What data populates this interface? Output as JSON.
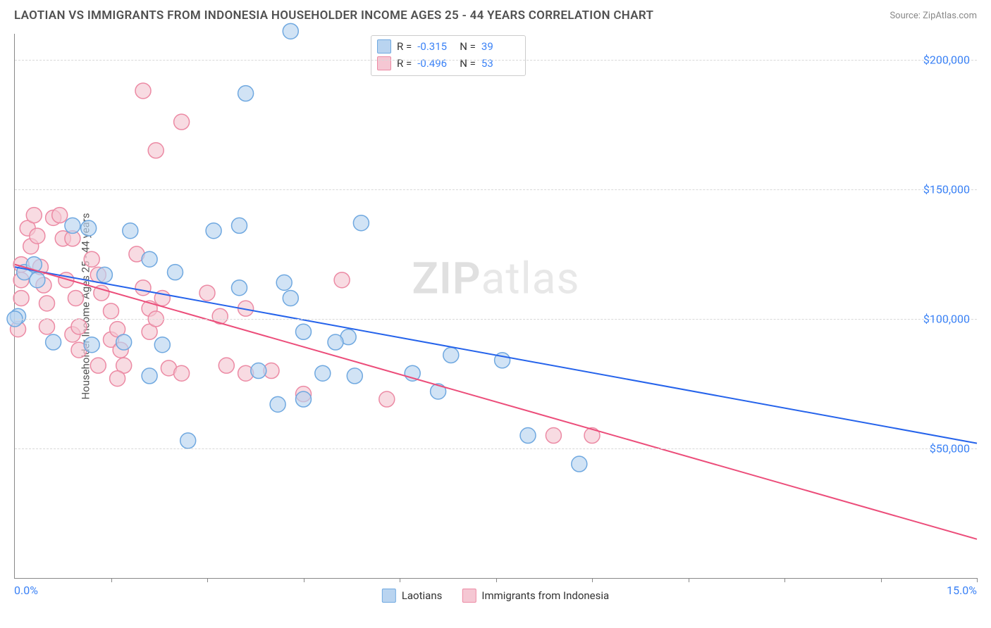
{
  "title": "LAOTIAN VS IMMIGRANTS FROM INDONESIA HOUSEHOLDER INCOME AGES 25 - 44 YEARS CORRELATION CHART",
  "source_label": "Source:",
  "source_name": "ZipAtlas.com",
  "watermark_a": "ZIP",
  "watermark_b": "atlas",
  "chart": {
    "type": "scatter",
    "ylabel": "Householder Income Ages 25 - 44 years",
    "xmin": 0,
    "xmax": 15,
    "ymin": 0,
    "ymax": 210000,
    "xmin_label": "0.0%",
    "xmax_label": "15.0%",
    "y_ticks": [
      50000,
      100000,
      150000,
      200000
    ],
    "y_tick_labels": [
      "$50,000",
      "$100,000",
      "$150,000",
      "$200,000"
    ],
    "x_ticks": [
      1.5,
      3.0,
      4.5,
      6.0,
      7.5,
      9.0,
      10.5,
      12.0,
      13.5,
      15.0
    ],
    "grid_color": "#d8d8d8",
    "background": "#ffffff",
    "series": [
      {
        "name": "Laotians",
        "color_fill": "#b9d4f0",
        "color_stroke": "#6fa8e0",
        "r_value": "-0.315",
        "n_value": "39",
        "trend": {
          "x1": 0,
          "y1": 120000,
          "x2": 15,
          "y2": 52000,
          "color": "#2563eb",
          "width": 2
        },
        "points": [
          [
            0.05,
            101000
          ],
          [
            0.15,
            118000
          ],
          [
            0.3,
            121000
          ],
          [
            0.35,
            115000
          ],
          [
            0.9,
            136000
          ],
          [
            1.15,
            135000
          ],
          [
            1.8,
            134000
          ],
          [
            1.4,
            117000
          ],
          [
            2.1,
            123000
          ],
          [
            2.5,
            118000
          ],
          [
            0.6,
            91000
          ],
          [
            1.2,
            90000
          ],
          [
            1.7,
            91000
          ],
          [
            2.3,
            90000
          ],
          [
            2.1,
            78000
          ],
          [
            4.3,
            211000
          ],
          [
            3.6,
            187000
          ],
          [
            3.1,
            134000
          ],
          [
            3.5,
            136000
          ],
          [
            5.4,
            137000
          ],
          [
            3.5,
            112000
          ],
          [
            4.2,
            114000
          ],
          [
            4.3,
            108000
          ],
          [
            4.5,
            95000
          ],
          [
            5.2,
            93000
          ],
          [
            5.0,
            91000
          ],
          [
            3.8,
            80000
          ],
          [
            4.8,
            79000
          ],
          [
            5.3,
            78000
          ],
          [
            4.1,
            67000
          ],
          [
            4.5,
            69000
          ],
          [
            2.7,
            53000
          ],
          [
            6.2,
            79000
          ],
          [
            6.8,
            86000
          ],
          [
            6.6,
            72000
          ],
          [
            7.6,
            84000
          ],
          [
            8.8,
            44000
          ],
          [
            8.0,
            55000
          ],
          [
            0.0,
            100000
          ]
        ]
      },
      {
        "name": "Immigrants from Indonesia",
        "color_fill": "#f5c7d3",
        "color_stroke": "#ec8aa4",
        "r_value": "-0.496",
        "n_value": "53",
        "trend": {
          "x1": 0,
          "y1": 121000,
          "x2": 15,
          "y2": 15000,
          "color": "#ec4d7a",
          "width": 2
        },
        "points": [
          [
            0.1,
            121000
          ],
          [
            0.1,
            115000
          ],
          [
            0.1,
            108000
          ],
          [
            0.05,
            96000
          ],
          [
            0.2,
            135000
          ],
          [
            0.25,
            128000
          ],
          [
            0.3,
            140000
          ],
          [
            0.35,
            132000
          ],
          [
            0.4,
            120000
          ],
          [
            0.45,
            113000
          ],
          [
            0.5,
            106000
          ],
          [
            0.5,
            97000
          ],
          [
            0.6,
            139000
          ],
          [
            0.7,
            140000
          ],
          [
            0.75,
            131000
          ],
          [
            0.8,
            115000
          ],
          [
            0.9,
            131000
          ],
          [
            0.95,
            108000
          ],
          [
            0.9,
            94000
          ],
          [
            1.0,
            97000
          ],
          [
            1.0,
            88000
          ],
          [
            1.2,
            123000
          ],
          [
            1.3,
            117000
          ],
          [
            1.35,
            110000
          ],
          [
            1.5,
            103000
          ],
          [
            1.5,
            92000
          ],
          [
            1.6,
            96000
          ],
          [
            1.65,
            88000
          ],
          [
            1.7,
            82000
          ],
          [
            1.9,
            125000
          ],
          [
            2.0,
            112000
          ],
          [
            2.1,
            104000
          ],
          [
            2.1,
            95000
          ],
          [
            2.2,
            100000
          ],
          [
            2.3,
            108000
          ],
          [
            1.3,
            82000
          ],
          [
            1.6,
            77000
          ],
          [
            2.4,
            81000
          ],
          [
            2.6,
            79000
          ],
          [
            2.0,
            188000
          ],
          [
            2.2,
            165000
          ],
          [
            2.6,
            176000
          ],
          [
            3.0,
            110000
          ],
          [
            3.2,
            101000
          ],
          [
            3.6,
            104000
          ],
          [
            3.3,
            82000
          ],
          [
            3.6,
            79000
          ],
          [
            4.0,
            80000
          ],
          [
            4.5,
            71000
          ],
          [
            5.1,
            115000
          ],
          [
            5.8,
            69000
          ],
          [
            8.4,
            55000
          ],
          [
            9.0,
            55000
          ]
        ]
      }
    ]
  },
  "legend_stats": {
    "r_label": "R =",
    "n_label": "N ="
  }
}
